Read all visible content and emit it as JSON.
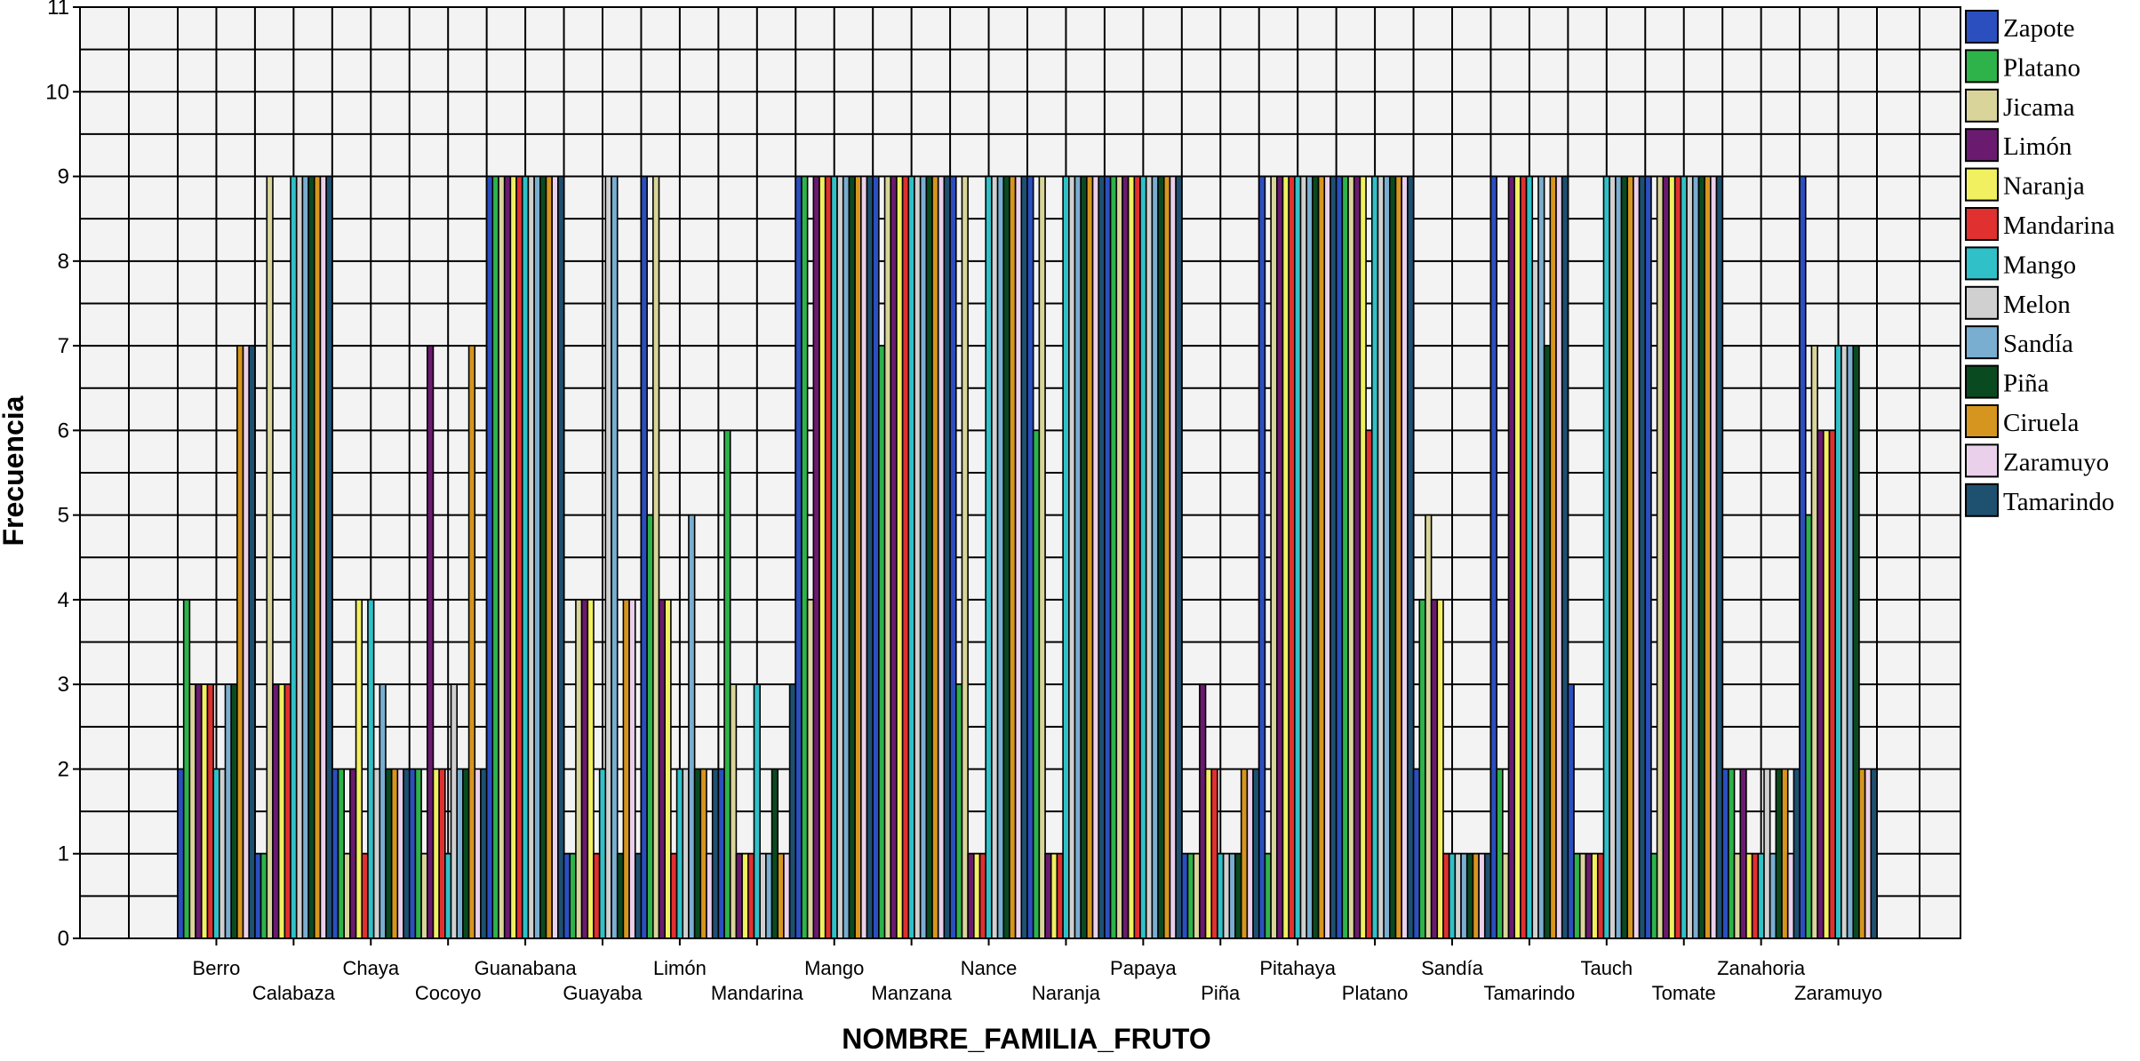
{
  "chart_data": {
    "type": "bar",
    "title": "",
    "xlabel": "NOMBRE_FAMILIA_FRUTO",
    "ylabel": "Frecuencia",
    "ylim": [
      0,
      11
    ],
    "yticks": [
      "0",
      "1",
      "2",
      "3",
      "4",
      "5",
      "6",
      "7",
      "8",
      "9",
      "10",
      "11"
    ],
    "grid": true,
    "legend_position": "right",
    "categories": [
      "Berro",
      "Calabaza",
      "Chaya",
      "Cocoyo",
      "Guanabana",
      "Guayaba",
      "Limón",
      "Mandarina",
      "Mango",
      "Manzana",
      "Nance",
      "Naranja",
      "Papaya",
      "Piña",
      "Pitahaya",
      "Platano",
      "Sandía",
      "Tamarindo",
      "Tauch",
      "Tomate",
      "Zanahoria",
      "Zaramuyo"
    ],
    "series": [
      {
        "name": "Zapote",
        "color": "#2b4fbf",
        "values": [
          2,
          1,
          2,
          2,
          9,
          1,
          9,
          2,
          9,
          9,
          9,
          9,
          9,
          1,
          9,
          9,
          2,
          9,
          3,
          9,
          2,
          9
        ]
      },
      {
        "name": "Platano",
        "color": "#2db34a",
        "values": [
          4,
          1,
          2,
          2,
          9,
          1,
          5,
          6,
          9,
          7,
          3,
          6,
          9,
          1,
          1,
          9,
          4,
          2,
          1,
          1,
          2,
          5
        ]
      },
      {
        "name": "Jicama",
        "color": "#d9d59a",
        "values": [
          3,
          9,
          1,
          1,
          9,
          4,
          9,
          3,
          4,
          9,
          9,
          9,
          9,
          1,
          9,
          9,
          5,
          1,
          1,
          9,
          1,
          7
        ]
      },
      {
        "name": "Limón",
        "color": "#6a1b6f",
        "values": [
          3,
          3,
          2,
          7,
          9,
          4,
          4,
          1,
          9,
          9,
          1,
          1,
          9,
          3,
          9,
          9,
          4,
          9,
          1,
          9,
          2,
          6
        ]
      },
      {
        "name": "Naranja",
        "color": "#f0f060",
        "values": [
          3,
          3,
          4,
          2,
          9,
          4,
          4,
          1,
          9,
          9,
          1,
          1,
          9,
          2,
          9,
          9,
          4,
          9,
          1,
          9,
          1,
          6
        ]
      },
      {
        "name": "Mandarina",
        "color": "#e03030",
        "values": [
          3,
          3,
          1,
          2,
          9,
          1,
          1,
          1,
          9,
          9,
          1,
          1,
          9,
          2,
          9,
          6,
          1,
          9,
          1,
          9,
          1,
          6
        ]
      },
      {
        "name": "Mango",
        "color": "#30c0c8",
        "values": [
          2,
          9,
          4,
          1,
          9,
          2,
          2,
          3,
          9,
          9,
          9,
          9,
          9,
          1,
          9,
          9,
          1,
          9,
          9,
          9,
          1,
          7
        ]
      },
      {
        "name": "Melon",
        "color": "#d0d0d0",
        "values": [
          2,
          9,
          2,
          3,
          9,
          9,
          2,
          1,
          9,
          9,
          9,
          9,
          9,
          1,
          9,
          9,
          1,
          8,
          9,
          9,
          2,
          7
        ]
      },
      {
        "name": "Sandía",
        "color": "#7aaed0",
        "values": [
          3,
          9,
          3,
          2,
          9,
          9,
          5,
          1,
          9,
          9,
          9,
          9,
          9,
          1,
          9,
          9,
          1,
          9,
          9,
          9,
          1,
          7
        ]
      },
      {
        "name": "Piña",
        "color": "#0a4a20",
        "values": [
          3,
          9,
          2,
          2,
          9,
          1,
          2,
          2,
          9,
          9,
          9,
          9,
          9,
          1,
          9,
          9,
          1,
          7,
          9,
          9,
          2,
          7
        ]
      },
      {
        "name": "Ciruela",
        "color": "#d6951e",
        "values": [
          7,
          9,
          2,
          7,
          9,
          4,
          2,
          1,
          9,
          9,
          9,
          9,
          9,
          2,
          9,
          9,
          1,
          9,
          9,
          9,
          2,
          2
        ]
      },
      {
        "name": "Zaramuyo",
        "color": "#ead0ea",
        "values": [
          7,
          9,
          2,
          2,
          9,
          4,
          1,
          1,
          9,
          9,
          9,
          9,
          9,
          2,
          9,
          9,
          1,
          9,
          9,
          9,
          1,
          2
        ]
      },
      {
        "name": "Tamarindo",
        "color": "#1e5070",
        "values": [
          7,
          9,
          2,
          2,
          9,
          1,
          2,
          3,
          9,
          9,
          9,
          9,
          9,
          2,
          9,
          9,
          1,
          9,
          9,
          9,
          2,
          2
        ]
      }
    ]
  }
}
